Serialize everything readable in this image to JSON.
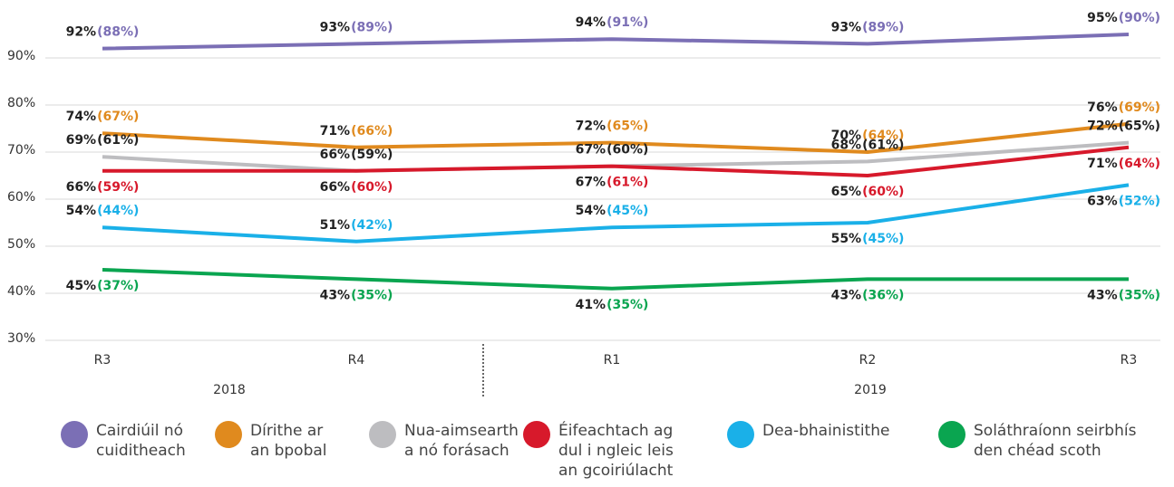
{
  "chart_data": {
    "type": "line",
    "categories": [
      "R3",
      "R4",
      "R1",
      "R2",
      "R3"
    ],
    "category_groups": [
      {
        "label": "2018",
        "start": 0,
        "end": 1
      },
      {
        "label": "2019",
        "start": 2,
        "end": 4
      }
    ],
    "ylim": [
      30,
      100
    ],
    "yticks": [
      {
        "value": 30,
        "label": "30%"
      },
      {
        "value": 40,
        "label": "40%"
      },
      {
        "value": 50,
        "label": "50%"
      },
      {
        "value": 60,
        "label": "60%"
      },
      {
        "value": 70,
        "label": "70%"
      },
      {
        "value": 80,
        "label": "80%"
      },
      {
        "value": 90,
        "label": "90%"
      }
    ],
    "grid": true,
    "series": [
      {
        "name": "Cairdiúil nó cuiditheach",
        "color": "#7b6fb5",
        "label_color": "#7b6fb5",
        "values": [
          92,
          93,
          94,
          93,
          95
        ],
        "value_labels": [
          "92%",
          "93%",
          "94%",
          "93%",
          "95%"
        ],
        "prior_values": [
          88,
          89,
          91,
          89,
          90
        ],
        "prior_value_labels": [
          "(88%)",
          "(89%)",
          "(91%)",
          "(89%)",
          "(90%)"
        ]
      },
      {
        "name": "Dírithe ar an bpobal",
        "color": "#e08a1e",
        "label_color": "#e08a1e",
        "values": [
          74,
          71,
          72,
          70,
          76
        ],
        "value_labels": [
          "74%",
          "71%",
          "72%",
          "70%",
          "76%"
        ],
        "prior_values": [
          67,
          66,
          65,
          64,
          69
        ],
        "prior_value_labels": [
          "(67%)",
          "(66%)",
          "(65%)",
          "(64%)",
          "(69%)"
        ]
      },
      {
        "name": "Nua-aimsearth a nó forásach",
        "color": "#bdbdc0",
        "label_color": "#222222",
        "values": [
          69,
          66,
          67,
          68,
          72
        ],
        "value_labels": [
          "69%",
          "66%",
          "67%",
          "68%",
          "72%"
        ],
        "prior_values": [
          61,
          59,
          60,
          61,
          65
        ],
        "prior_value_labels": [
          "(61%)",
          "(59%)",
          "(60%)",
          "(61%)",
          "(65%)"
        ]
      },
      {
        "name": "Éifeachtach ag dul i ngleic leis an gcoiriúlacht",
        "color": "#d7192b",
        "label_color": "#d7192b",
        "values": [
          66,
          66,
          67,
          65,
          71
        ],
        "value_labels": [
          "66%",
          "66%",
          "67%",
          "65%",
          "71%"
        ],
        "prior_values": [
          59,
          60,
          61,
          60,
          64
        ],
        "prior_value_labels": [
          "(59%)",
          "(60%)",
          "(61%)",
          "(60%)",
          "(64%)"
        ]
      },
      {
        "name": "Dea-bhainistithe",
        "color": "#1ab0e8",
        "label_color": "#1ab0e8",
        "values": [
          54,
          51,
          54,
          55,
          63
        ],
        "value_labels": [
          "54%",
          "51%",
          "54%",
          "55%",
          "63%"
        ],
        "prior_values": [
          44,
          42,
          45,
          45,
          52
        ],
        "prior_value_labels": [
          "(44%)",
          "(42%)",
          "(45%)",
          "(45%)",
          "(52%)"
        ]
      },
      {
        "name": "Soláthraíonn seirbhís den chéad scoth",
        "color": "#0aa550",
        "label_color": "#0aa550",
        "values": [
          45,
          43,
          41,
          43,
          43
        ],
        "value_labels": [
          "45%",
          "43%",
          "41%",
          "43%",
          "43%"
        ],
        "prior_values": [
          37,
          35,
          35,
          36,
          35
        ],
        "prior_value_labels": [
          "(37%)",
          "(35%)",
          "(35%)",
          "(36%)",
          "(35%)"
        ]
      }
    ]
  }
}
